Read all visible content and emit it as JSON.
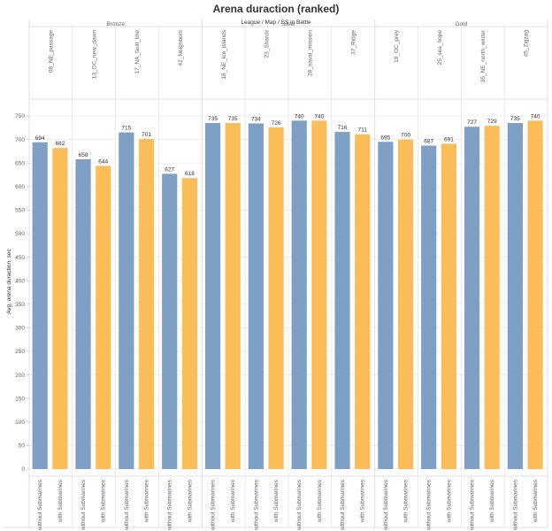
{
  "chart_data": {
    "type": "bar",
    "title": "Arena duraction (ranked)",
    "subtitle_parts": [
      "League",
      "Map",
      "SS in Battle"
    ],
    "ylabel": "Avg. arena duraction, sec",
    "ylim": [
      0,
      780
    ],
    "yticks": [
      0,
      50,
      100,
      150,
      200,
      250,
      300,
      350,
      400,
      450,
      500,
      550,
      600,
      650,
      700,
      750
    ],
    "grid": true,
    "categories": [
      "without Submarines",
      "with Submarines"
    ],
    "colors": {
      "without Submarines": "#7f9fc4",
      "with Submarines": "#fbbd5a"
    },
    "leagues": [
      {
        "name": "Bronze",
        "maps": [
          {
            "name": "08_NE_passage",
            "values": [
              694,
              682
            ]
          },
          {
            "name": "13_OC_new_dawn",
            "values": [
              658,
              644
            ]
          },
          {
            "name": "17_NA_fault_line",
            "values": [
              715,
              701
            ]
          },
          {
            "name": "42_Neighbors",
            "values": [
              627,
              618
            ]
          }
        ]
      },
      {
        "name": "Silver",
        "maps": [
          {
            "name": "18_NE_ice_islands",
            "values": [
              735,
              735
            ]
          },
          {
            "name": "23_Shards",
            "values": [
              734,
              726
            ]
          },
          {
            "name": "28_naval_mission",
            "values": [
              740,
              740
            ]
          },
          {
            "name": "37_Ridge",
            "values": [
              716,
              711
            ]
          }
        ]
      },
      {
        "name": "Gold",
        "maps": [
          {
            "name": "19_OC_prey",
            "values": [
              695,
              700
            ]
          },
          {
            "name": "25_sea_hope",
            "values": [
              687,
              691
            ]
          },
          {
            "name": "35_NE_north_winter",
            "values": [
              727,
              729
            ]
          },
          {
            "name": "45_Zigzag",
            "values": [
              735,
              740
            ]
          }
        ]
      }
    ]
  }
}
